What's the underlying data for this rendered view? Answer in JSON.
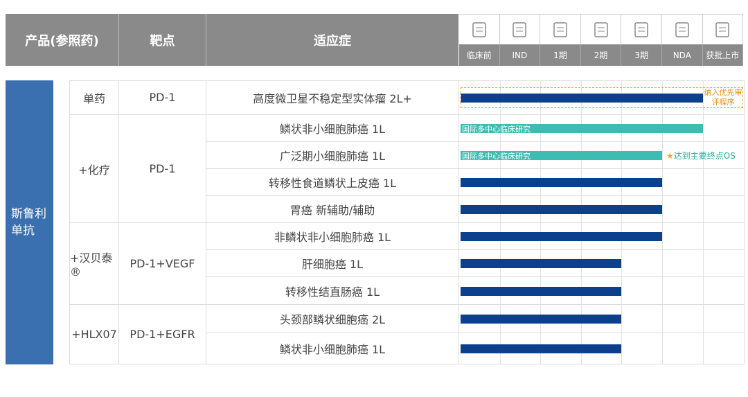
{
  "header": {
    "product": "产品(参照药)",
    "target": "靶点",
    "indication": "适应症",
    "stages": [
      "临床前",
      "IND",
      "1期",
      "2期",
      "3期",
      "NDA",
      "获批上市"
    ]
  },
  "drug": "斯鲁利单抗",
  "groups": [
    {
      "combo": "单药",
      "target": "PD-1",
      "rows": [
        {
          "indication": "高度微卫星不稳定型实体瘤 2L+",
          "progress": 6,
          "note": "纳入优先审评程序"
        }
      ]
    },
    {
      "combo": "+化疗",
      "target": "PD-1",
      "rows": [
        {
          "indication": "鳞状非小细胞肺癌 1L",
          "progress": 6,
          "label": "国际多中心临床研究"
        },
        {
          "indication": "广泛期小细胞肺癌 1L",
          "progress": 5,
          "label": "国际多中心临床研究",
          "note": "达到主要终点OS"
        },
        {
          "indication": "转移性食道鳞状上皮癌 1L",
          "progress": 5
        },
        {
          "indication": "胃癌 新辅助/辅助",
          "progress": 5
        }
      ]
    },
    {
      "combo": "+汉贝泰®",
      "target": "PD-1+VEGF",
      "rows": [
        {
          "indication": "非鳞状非小细胞肺癌 1L",
          "progress": 5
        },
        {
          "indication": "肝细胞癌 1L",
          "progress": 4
        },
        {
          "indication": "转移性结直肠癌 1L",
          "progress": 4
        }
      ]
    },
    {
      "combo": "+HLX07",
      "target": "PD-1+EGFR",
      "rows": [
        {
          "indication": "头颈部鳞状细胞癌 2L",
          "progress": 4
        },
        {
          "indication": "鳞状非小细胞肺癌 1L",
          "progress": 4
        }
      ]
    }
  ]
}
